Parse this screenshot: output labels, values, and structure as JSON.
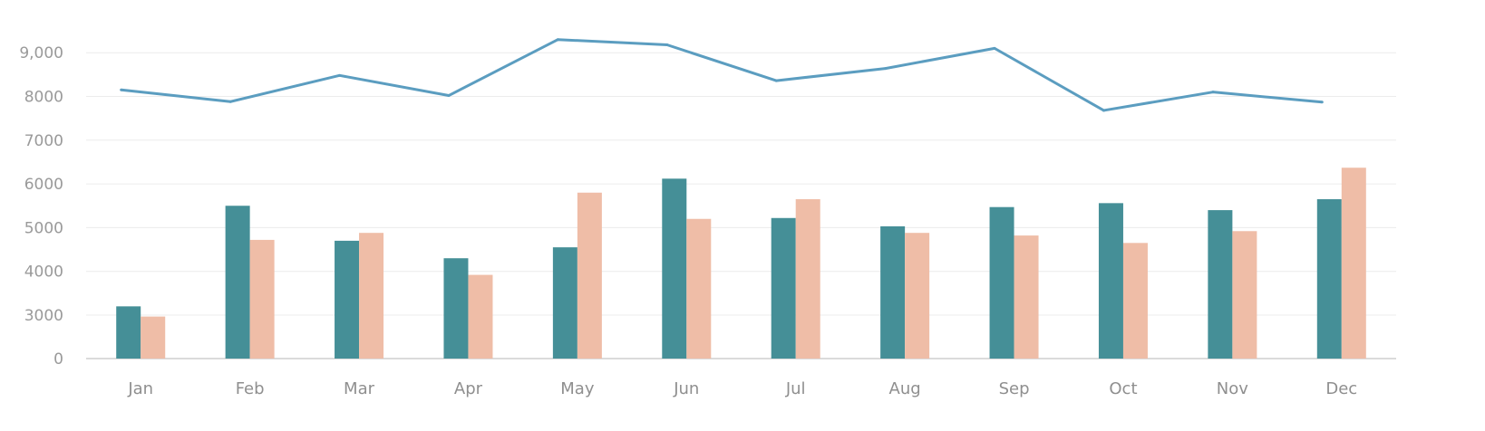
{
  "chart_data": {
    "type": "bar",
    "categories": [
      "Jan",
      "Feb",
      "Mar",
      "Apr",
      "May",
      "Jun",
      "Jul",
      "Aug",
      "Sep",
      "Oct",
      "Nov",
      "Dec"
    ],
    "y_ticks": [
      {
        "value": 0,
        "label": "0"
      },
      {
        "value": 3000,
        "label": "3000"
      },
      {
        "value": 4000,
        "label": "4000"
      },
      {
        "value": 5000,
        "label": "5000"
      },
      {
        "value": 6000,
        "label": "6000"
      },
      {
        "value": 7000,
        "label": "7000"
      },
      {
        "value": 8000,
        "label": "8000"
      },
      {
        "value": 9000,
        "label": "9,000"
      }
    ],
    "series": [
      {
        "type": "bar",
        "color": "#458F97",
        "values": [
          3200,
          5500,
          4700,
          4300,
          4550,
          6120,
          5220,
          5030,
          5470,
          5560,
          5400,
          5650
        ]
      },
      {
        "type": "bar",
        "color": "#EFBDA7",
        "values": [
          2900,
          4720,
          4880,
          3920,
          5800,
          5200,
          5650,
          4880,
          4820,
          4650,
          4920,
          6370
        ]
      },
      {
        "type": "line",
        "color": "#5B9DC0",
        "values": [
          8150,
          7880,
          8480,
          8020,
          9300,
          9180,
          8360,
          8640,
          9100,
          7680,
          8100,
          7870
        ]
      }
    ],
    "grid": true,
    "legend": "none"
  }
}
